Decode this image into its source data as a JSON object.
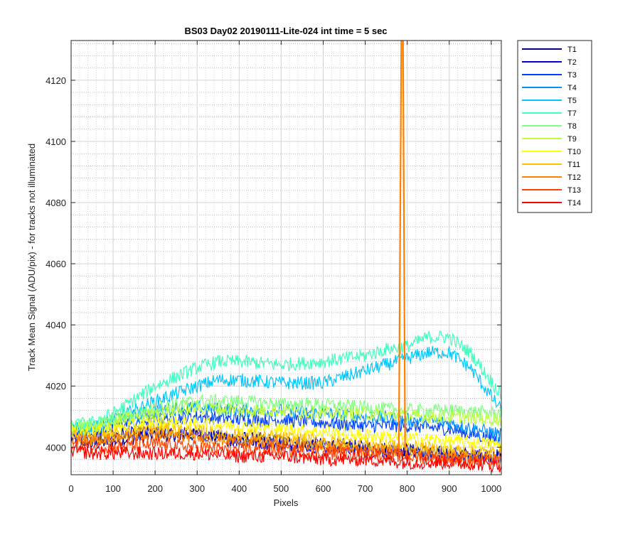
{
  "chart_data": {
    "type": "line",
    "title": "BS03 Day02 20190111-Lite-024 int time = 5 sec",
    "xlabel": "Pixels",
    "ylabel": "Track Mean Signal (ADU/pix) - for tracks not illuminated",
    "xlim": [
      0,
      1024
    ],
    "ylim": [
      3991,
      4133
    ],
    "xticks": [
      0,
      100,
      200,
      300,
      400,
      500,
      600,
      700,
      800,
      900,
      1000
    ],
    "yticks": [
      4000,
      4020,
      4040,
      4060,
      4080,
      4100,
      4120
    ],
    "grid": "major and minor (dotted)",
    "legend_position": "outside top-right",
    "series": [
      {
        "name": "T1",
        "color": "#00008f",
        "x": [
          0,
          50,
          100,
          200,
          300,
          400,
          500,
          600,
          700,
          800,
          900,
          1024
        ],
        "y": [
          4003,
          4001,
          4002,
          4004,
          4004,
          4003,
          4002,
          4001,
          4000,
          3999,
          3998,
          3997
        ]
      },
      {
        "name": "T2",
        "color": "#0000cf",
        "x": [
          0,
          50,
          100,
          200,
          300,
          400,
          500,
          600,
          700,
          800,
          900,
          1024
        ],
        "y": [
          4005,
          4003,
          4004,
          4005,
          4004,
          4002,
          4001,
          4000,
          3999,
          3998,
          3997,
          3997
        ]
      },
      {
        "name": "T3",
        "color": "#0040ff",
        "x": [
          0,
          50,
          100,
          200,
          300,
          400,
          500,
          600,
          700,
          800,
          900,
          1024
        ],
        "y": [
          4005,
          4004,
          4007,
          4009,
          4010,
          4009,
          4009,
          4008,
          4007,
          4007,
          4006,
          4002
        ]
      },
      {
        "name": "T4",
        "color": "#0090ff",
        "x": [
          0,
          50,
          100,
          200,
          300,
          400,
          500,
          600,
          700,
          800,
          900,
          1024
        ],
        "y": [
          4006,
          4006,
          4008,
          4012,
          4013,
          4012,
          4012,
          4011,
          4010,
          4009,
          4008,
          4004
        ]
      },
      {
        "name": "T5",
        "color": "#00c8ff",
        "x": [
          0,
          50,
          100,
          200,
          300,
          350,
          400,
          500,
          600,
          700,
          750,
          800,
          850,
          900,
          950,
          1024
        ],
        "y": [
          4006,
          4006,
          4009,
          4015,
          4020,
          4022,
          4022,
          4021,
          4021,
          4025,
          4027,
          4029,
          4031,
          4031,
          4026,
          4012
        ]
      },
      {
        "name": "T7",
        "color": "#40ffbf",
        "x": [
          0,
          50,
          100,
          200,
          300,
          350,
          400,
          500,
          600,
          700,
          750,
          800,
          850,
          900,
          950,
          1024
        ],
        "y": [
          4007,
          4008,
          4011,
          4020,
          4026,
          4028,
          4028,
          4027,
          4028,
          4030,
          4032,
          4033,
          4036,
          4036,
          4031,
          4017
        ]
      },
      {
        "name": "T8",
        "color": "#80ff80",
        "x": [
          0,
          50,
          100,
          200,
          300,
          400,
          500,
          600,
          700,
          800,
          900,
          1024
        ],
        "y": [
          4007,
          4007,
          4009,
          4013,
          4015,
          4015,
          4014,
          4014,
          4013,
          4012,
          4012,
          4011
        ]
      },
      {
        "name": "T9",
        "color": "#bfff40",
        "x": [
          0,
          50,
          100,
          200,
          300,
          400,
          500,
          600,
          700,
          800,
          900,
          1024
        ],
        "y": [
          4006,
          4006,
          4008,
          4011,
          4013,
          4012,
          4012,
          4011,
          4011,
          4010,
          4010,
          4009
        ]
      },
      {
        "name": "T10",
        "color": "#ffff00",
        "x": [
          0,
          50,
          100,
          200,
          300,
          400,
          500,
          600,
          700,
          800,
          900,
          1024
        ],
        "y": [
          4005,
          4005,
          4006,
          4008,
          4008,
          4007,
          4006,
          4005,
          4004,
          4003,
          4002,
          4001
        ]
      },
      {
        "name": "T11",
        "color": "#ffbf00",
        "x": [
          0,
          50,
          100,
          200,
          300,
          400,
          500,
          600,
          700,
          800,
          900,
          1024
        ],
        "y": [
          4004,
          4003,
          4004,
          4006,
          4005,
          4004,
          4003,
          4002,
          4001,
          4000,
          3999,
          3998
        ]
      },
      {
        "name": "T12",
        "color": "#ff8000",
        "x": [
          0,
          50,
          100,
          200,
          300,
          400,
          500,
          600,
          700,
          780,
          786,
          790,
          795,
          800,
          900,
          1024
        ],
        "y": [
          4003,
          4002,
          4003,
          4004,
          4003,
          4002,
          4001,
          4000,
          3999,
          3999,
          4133,
          4133,
          3999,
          3998,
          3997,
          3996
        ]
      },
      {
        "name": "T13",
        "color": "#ff4000",
        "x": [
          0,
          50,
          100,
          200,
          300,
          400,
          500,
          600,
          700,
          800,
          900,
          1024
        ],
        "y": [
          4001,
          4000,
          4000,
          4001,
          4000,
          3999,
          3999,
          3998,
          3998,
          3997,
          3996,
          3995
        ]
      },
      {
        "name": "T14",
        "color": "#ff0000",
        "x": [
          0,
          50,
          100,
          200,
          300,
          400,
          500,
          600,
          700,
          800,
          900,
          1024
        ],
        "y": [
          3999,
          3998,
          3998,
          3998,
          3998,
          3997,
          3997,
          3996,
          3996,
          3995,
          3995,
          3994
        ]
      }
    ]
  }
}
